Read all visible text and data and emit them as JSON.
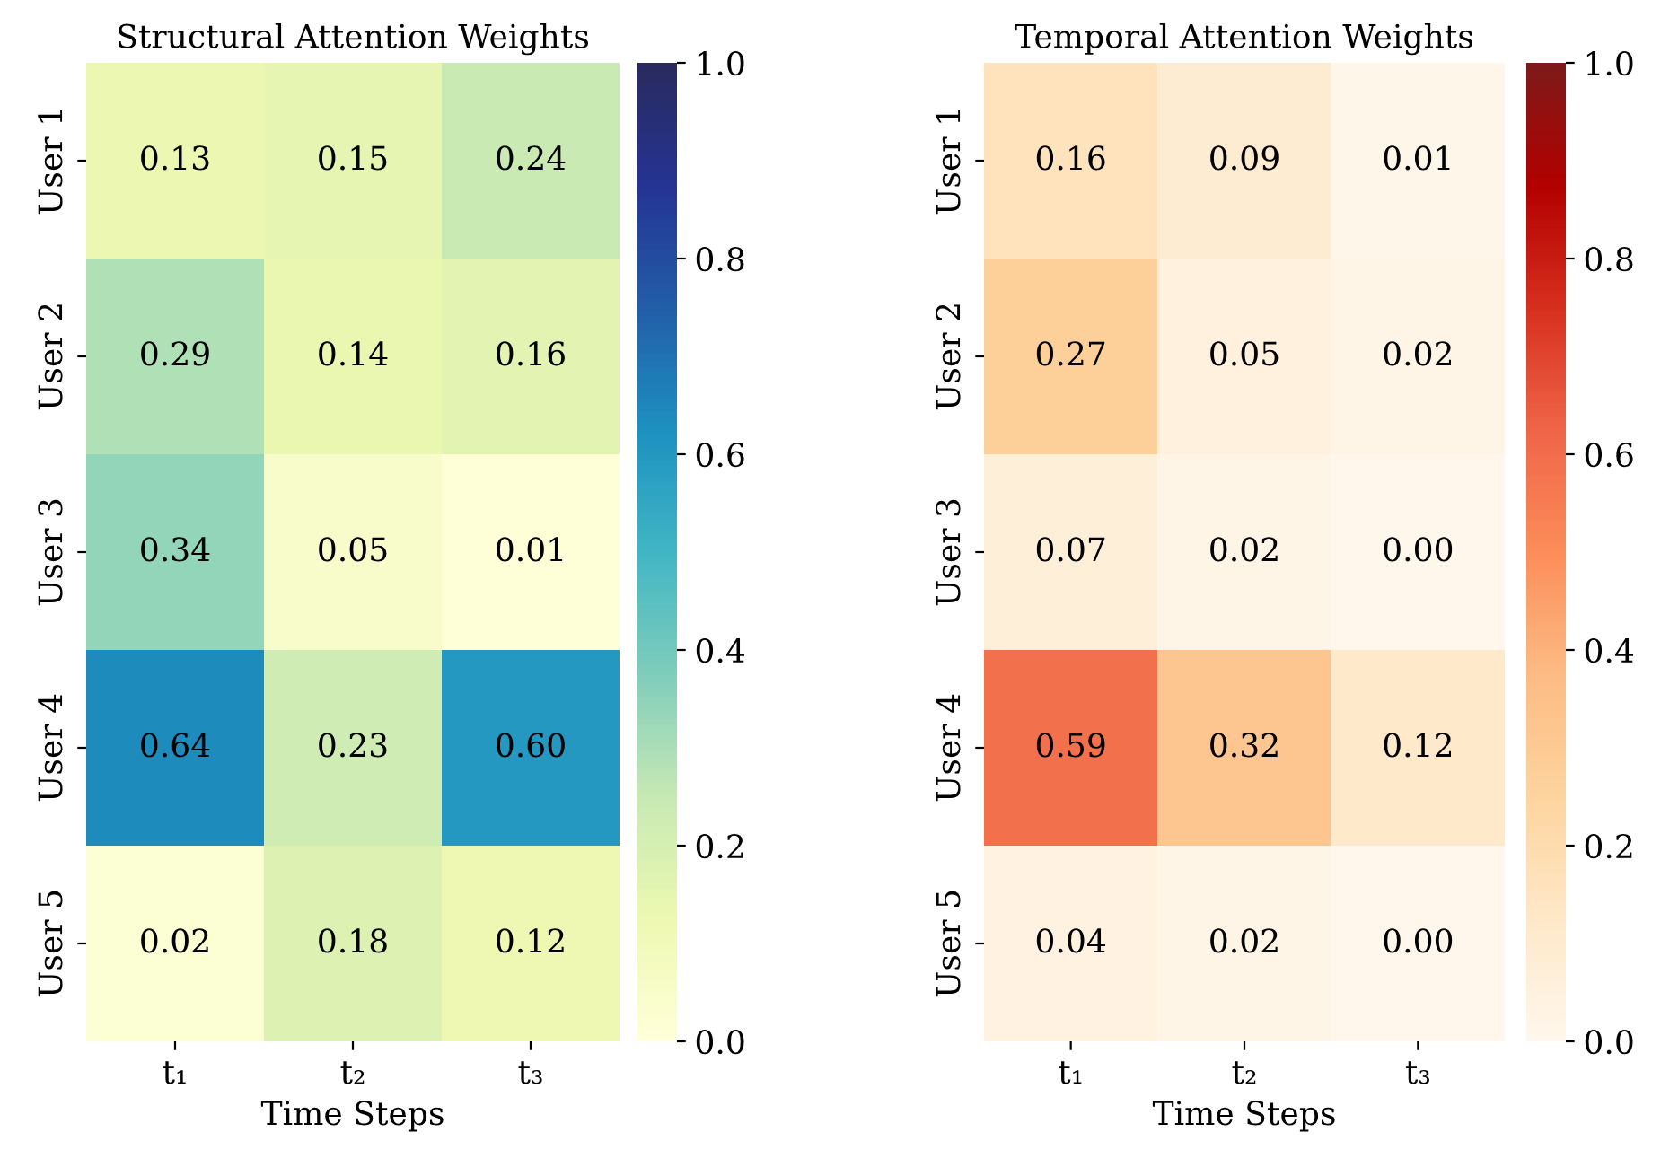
{
  "chart_data": [
    {
      "type": "heatmap",
      "title": "Structural Attention Weights",
      "xlabel": "Time Steps",
      "categories": [
        "t₁",
        "t₂",
        "t₃"
      ],
      "y_categories": [
        "User 1",
        "User 2",
        "User 3",
        "User 4",
        "User 5"
      ],
      "cells": [
        [
          0.13,
          0.15,
          0.24
        ],
        [
          0.29,
          0.14,
          0.16
        ],
        [
          0.34,
          0.05,
          0.01
        ],
        [
          0.64,
          0.23,
          0.6
        ],
        [
          0.02,
          0.18,
          0.12
        ]
      ],
      "cell_labels": [
        [
          "0.13",
          "0.15",
          "0.24"
        ],
        [
          "0.29",
          "0.14",
          "0.16"
        ],
        [
          "0.34",
          "0.05",
          "0.01"
        ],
        [
          "0.64",
          "0.23",
          "0.60"
        ],
        [
          "0.02",
          "0.18",
          "0.12"
        ]
      ],
      "clim": [
        0,
        1
      ],
      "cticks": [
        {
          "value": 0,
          "label": "0.0"
        },
        {
          "value": 0.2,
          "label": "0.2"
        },
        {
          "value": 0.4,
          "label": "0.4"
        },
        {
          "value": 0.6,
          "label": "0.6"
        },
        {
          "value": 0.8,
          "label": "0.8"
        },
        {
          "value": 1,
          "label": "1.0"
        }
      ],
      "colors": [
        "#ffffd9",
        "#edf8b1",
        "#c7e9b4",
        "#7fcdbb",
        "#41b6c4",
        "#1d91c0",
        "#225ea8",
        "#253494",
        "#2a2a5e"
      ]
    },
    {
      "type": "heatmap",
      "title": "Temporal Attention Weights",
      "xlabel": "Time Steps",
      "categories": [
        "t₁",
        "t₂",
        "t₃"
      ],
      "y_categories": [
        "User 1",
        "User 2",
        "User 3",
        "User 4",
        "User 5"
      ],
      "cells": [
        [
          0.16,
          0.09,
          0.01
        ],
        [
          0.27,
          0.05,
          0.02
        ],
        [
          0.07,
          0.02,
          0.0
        ],
        [
          0.59,
          0.32,
          0.12
        ],
        [
          0.04,
          0.02,
          0.0
        ]
      ],
      "cell_labels": [
        [
          "0.16",
          "0.09",
          "0.01"
        ],
        [
          "0.27",
          "0.05",
          "0.02"
        ],
        [
          "0.07",
          "0.02",
          "0.00"
        ],
        [
          "0.59",
          "0.32",
          "0.12"
        ],
        [
          "0.04",
          "0.02",
          "0.00"
        ]
      ],
      "clim": [
        0,
        1
      ],
      "cticks": [
        {
          "value": 0,
          "label": "0.0"
        },
        {
          "value": 0.2,
          "label": "0.2"
        },
        {
          "value": 0.4,
          "label": "0.4"
        },
        {
          "value": 0.6,
          "label": "0.6"
        },
        {
          "value": 0.8,
          "label": "0.8"
        },
        {
          "value": 1,
          "label": "1.0"
        }
      ],
      "colors": [
        "#fff7ec",
        "#fee8c8",
        "#fdd49e",
        "#fdbb84",
        "#fc8d59",
        "#ef6548",
        "#d7301f",
        "#b30000",
        "#7f1a1a"
      ]
    }
  ]
}
